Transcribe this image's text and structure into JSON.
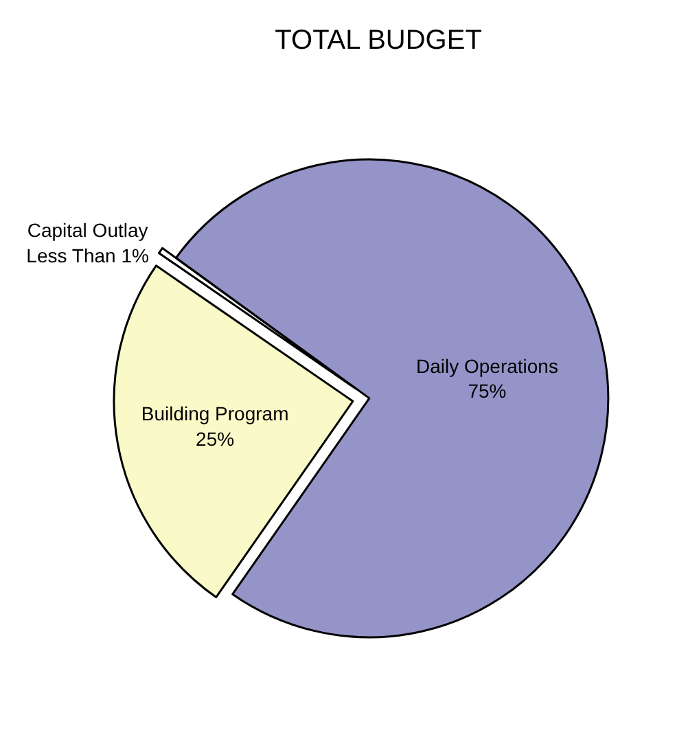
{
  "chart_data": {
    "type": "pie",
    "title": "TOTAL BUDGET",
    "categories": [
      "Daily Operations",
      "Building Program",
      "Capital Outlay"
    ],
    "values": [
      75,
      25,
      0.4
    ],
    "value_labels": [
      "75%",
      "25%",
      "Less Than 1%"
    ],
    "colors": [
      "#9494c8",
      "#fafac8",
      "#ffffff"
    ],
    "legend": false
  }
}
